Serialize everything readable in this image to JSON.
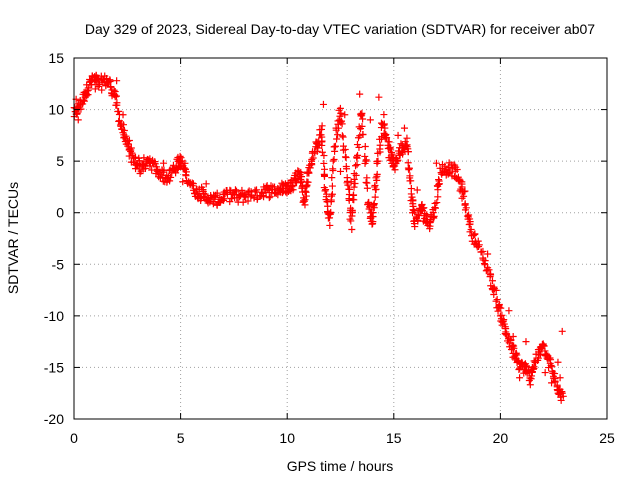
{
  "chart_data": {
    "type": "scatter",
    "title": "Day 329 of 2023, Sidereal Day-to-day VTEC variation (SDTVAR) for receiver ab07",
    "xlabel": "GPS time / hours",
    "ylabel": "SDTVAR / TECUs",
    "xlim": [
      0,
      25
    ],
    "ylim": [
      -20,
      15
    ],
    "xticks": [
      0,
      5,
      10,
      15,
      20,
      25
    ],
    "yticks": [
      -20,
      -15,
      -10,
      -5,
      0,
      5,
      10,
      15
    ],
    "grid": true,
    "marker": "+",
    "color": "#ff0000",
    "series": [
      {
        "name": "SDTVAR",
        "trend": [
          [
            0.0,
            9.5
          ],
          [
            0.3,
            10.5
          ],
          [
            0.6,
            12.0
          ],
          [
            0.9,
            13.0
          ],
          [
            1.2,
            12.5
          ],
          [
            1.6,
            12.8
          ],
          [
            1.9,
            11.5
          ],
          [
            2.2,
            8.5
          ],
          [
            2.5,
            6.5
          ],
          [
            2.8,
            5.0
          ],
          [
            3.2,
            4.5
          ],
          [
            3.6,
            5.0
          ],
          [
            4.0,
            3.8
          ],
          [
            4.4,
            3.5
          ],
          [
            4.8,
            4.5
          ],
          [
            5.0,
            5.0
          ],
          [
            5.3,
            3.5
          ],
          [
            5.7,
            2.0
          ],
          [
            6.0,
            1.8
          ],
          [
            6.4,
            1.2
          ],
          [
            6.8,
            1.2
          ],
          [
            7.2,
            1.8
          ],
          [
            7.7,
            1.5
          ],
          [
            8.2,
            1.8
          ],
          [
            8.7,
            1.8
          ],
          [
            9.2,
            2.2
          ],
          [
            9.7,
            2.2
          ],
          [
            10.0,
            2.5
          ],
          [
            10.3,
            3.0
          ],
          [
            10.6,
            4.0
          ],
          [
            10.8,
            1.0
          ],
          [
            11.0,
            4.0
          ],
          [
            11.3,
            6.0
          ],
          [
            11.6,
            8.0
          ],
          [
            11.8,
            2.0
          ],
          [
            12.0,
            -1.0
          ],
          [
            12.2,
            6.0
          ],
          [
            12.5,
            10.0
          ],
          [
            12.8,
            4.0
          ],
          [
            13.0,
            -1.0
          ],
          [
            13.2,
            4.0
          ],
          [
            13.5,
            10.0
          ],
          [
            13.8,
            1.0
          ],
          [
            14.0,
            -1.0
          ],
          [
            14.2,
            4.0
          ],
          [
            14.5,
            9.0
          ],
          [
            14.8,
            6.0
          ],
          [
            15.0,
            4.5
          ],
          [
            15.3,
            6.0
          ],
          [
            15.6,
            7.0
          ],
          [
            15.8,
            2.0
          ],
          [
            16.0,
            -1.0
          ],
          [
            16.3,
            0.5
          ],
          [
            16.6,
            -1.0
          ],
          [
            16.9,
            0.0
          ],
          [
            17.2,
            4.0
          ],
          [
            17.6,
            4.5
          ],
          [
            18.0,
            3.5
          ],
          [
            18.3,
            1.5
          ],
          [
            18.6,
            -1.5
          ],
          [
            19.0,
            -3.5
          ],
          [
            19.5,
            -6.0
          ],
          [
            19.9,
            -9.0
          ],
          [
            20.2,
            -11.0
          ],
          [
            20.5,
            -13.0
          ],
          [
            20.8,
            -14.5
          ],
          [
            21.1,
            -15.0
          ],
          [
            21.4,
            -16.0
          ],
          [
            21.7,
            -14.0
          ],
          [
            22.0,
            -13.0
          ],
          [
            22.3,
            -14.5
          ],
          [
            22.6,
            -16.5
          ],
          [
            22.9,
            -17.5
          ]
        ],
        "extra_points": [
          [
            0.1,
            11.0
          ],
          [
            0.2,
            9.0
          ],
          [
            1.0,
            12.0
          ],
          [
            2.0,
            12.8
          ],
          [
            2.3,
            9.5
          ],
          [
            2.6,
            7.0
          ],
          [
            3.1,
            3.8
          ],
          [
            4.2,
            4.8
          ],
          [
            5.1,
            3.0
          ],
          [
            6.2,
            2.8
          ],
          [
            8.9,
            2.5
          ],
          [
            11.7,
            10.5
          ],
          [
            12.3,
            8.0
          ],
          [
            12.5,
            4.0
          ],
          [
            12.7,
            9.5
          ],
          [
            13.0,
            3.0
          ],
          [
            13.4,
            11.5
          ],
          [
            13.7,
            5.0
          ],
          [
            13.9,
            9.0
          ],
          [
            14.1,
            2.5
          ],
          [
            14.3,
            11.2
          ],
          [
            14.6,
            7.5
          ],
          [
            15.2,
            7.5
          ],
          [
            15.5,
            8.2
          ],
          [
            16.1,
            2.2
          ],
          [
            17.0,
            4.8
          ],
          [
            18.2,
            2.5
          ],
          [
            19.4,
            -4.0
          ],
          [
            20.0,
            -10.0
          ],
          [
            20.4,
            -9.5
          ],
          [
            20.6,
            -12.0
          ],
          [
            20.9,
            -16.0
          ],
          [
            21.2,
            -12.5
          ],
          [
            21.5,
            -15.0
          ],
          [
            21.8,
            -13.5
          ],
          [
            22.1,
            -15.5
          ],
          [
            22.4,
            -16.5
          ],
          [
            22.7,
            -14.5
          ],
          [
            22.8,
            -16.0
          ],
          [
            22.9,
            -11.5
          ],
          [
            22.95,
            -17.8
          ],
          [
            22.85,
            -18.2
          ]
        ]
      }
    ]
  }
}
